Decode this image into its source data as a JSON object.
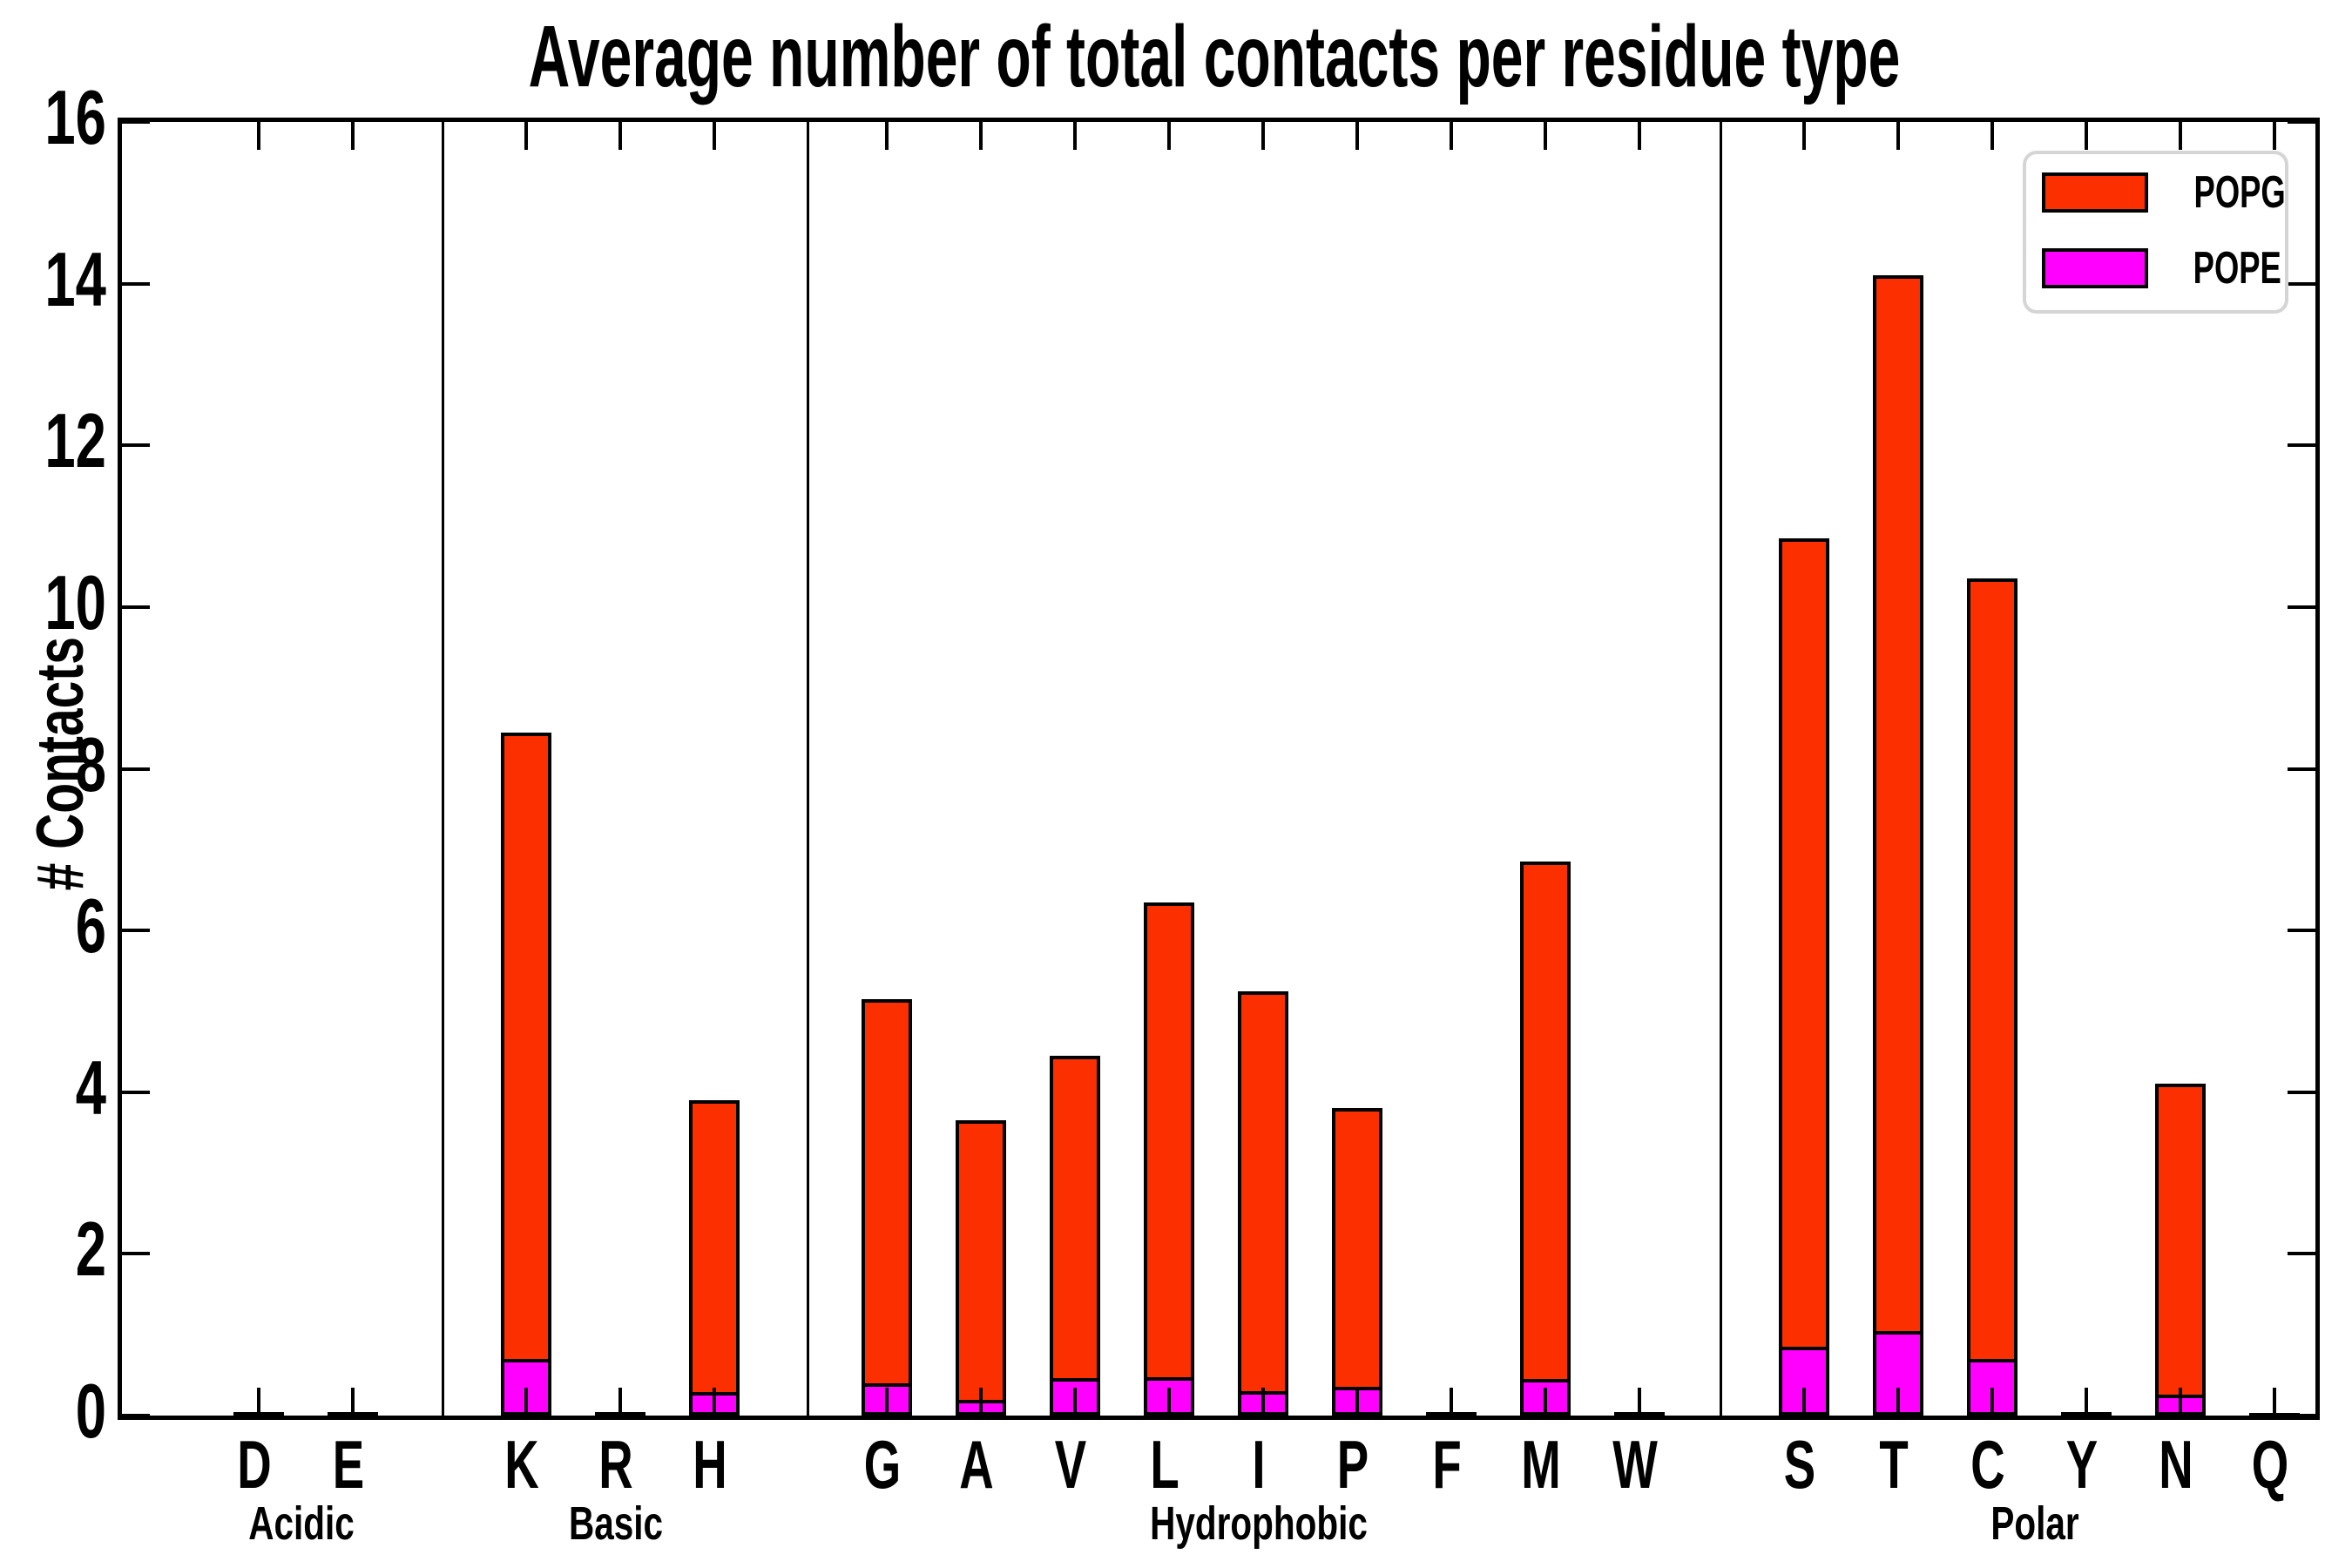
{
  "title": "Average number of total contacts per residue type",
  "axes": {
    "ylabel": "# Contacts",
    "ylim": [
      0,
      16
    ],
    "yticks": [
      0,
      2,
      4,
      6,
      8,
      10,
      12,
      14,
      16
    ],
    "grid": false
  },
  "legend": {
    "position": "upper right",
    "items": [
      {
        "label": "POPG",
        "color": "#fb2f00"
      },
      {
        "label": "POPE",
        "color": "#ff00ff"
      }
    ]
  },
  "chart_data": {
    "type": "bar",
    "stacked": true,
    "title": "Average number of total contacts per residue type",
    "xlabel": "",
    "ylabel": "# Contacts",
    "ylim": [
      0,
      16
    ],
    "categories": [
      "D",
      "E",
      "K",
      "R",
      "H",
      "G",
      "A",
      "V",
      "L",
      "I",
      "P",
      "F",
      "M",
      "W",
      "S",
      "T",
      "C",
      "Y",
      "N",
      "Q"
    ],
    "groups": [
      {
        "name": "Acidic",
        "members": [
          "D",
          "E"
        ]
      },
      {
        "name": "Basic",
        "members": [
          "K",
          "R",
          "H"
        ]
      },
      {
        "name": "Hydrophobic",
        "members": [
          "G",
          "A",
          "V",
          "L",
          "I",
          "P",
          "F",
          "M",
          "W"
        ]
      },
      {
        "name": "Polar",
        "members": [
          "S",
          "T",
          "C",
          "Y",
          "N",
          "Q"
        ]
      }
    ],
    "series": [
      {
        "name": "POPE",
        "color": "#ff00ff",
        "values": [
          0.01,
          0.01,
          0.7,
          0.01,
          0.29,
          0.4,
          0.19,
          0.46,
          0.47,
          0.3,
          0.36,
          0.01,
          0.45,
          0.01,
          0.85,
          1.04,
          0.7,
          0.01,
          0.26,
          0.01
        ]
      },
      {
        "name": "POPG",
        "color": "#fb2f00",
        "values": [
          0.03,
          0.03,
          7.75,
          0.03,
          3.61,
          4.75,
          3.46,
          3.99,
          5.88,
          4.95,
          3.44,
          0.03,
          6.4,
          0.03,
          10.0,
          13.06,
          9.65,
          0.03,
          3.84,
          0.02
        ]
      }
    ],
    "totals": [
      0.04,
      0.04,
      8.45,
      0.04,
      3.9,
      5.15,
      3.65,
      4.45,
      6.35,
      5.25,
      3.8,
      0.04,
      6.85,
      0.04,
      10.85,
      14.1,
      10.35,
      0.04,
      4.1,
      0.03
    ]
  }
}
